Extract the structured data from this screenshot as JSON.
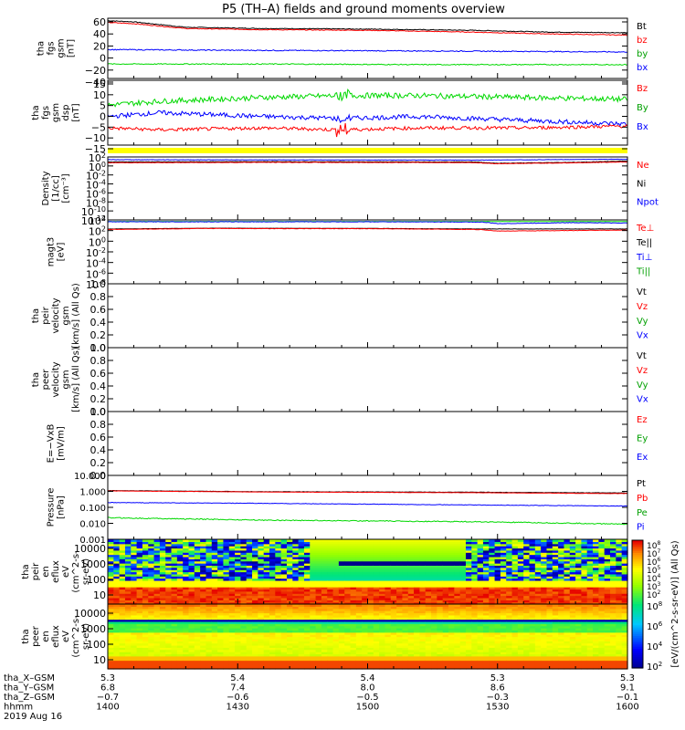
{
  "colors": {
    "black": "#000000",
    "red": "#ff0000",
    "blue": "#0000ff",
    "green": "#00d800",
    "yellow": "#ffff00",
    "gray": "#606060"
  },
  "title": "P5 (TH–A) fields and ground moments overview",
  "chart_data": [
    {
      "type": "line",
      "id": "p1",
      "ylabel": [
        "tha",
        "fgs",
        "gsm",
        "[nT]"
      ],
      "yticks": [
        "60",
        "40",
        "20",
        "0",
        "−20",
        "−40"
      ],
      "ylim": [
        -40,
        60
      ],
      "legend": [
        {
          "name": "Bt",
          "color": "#000000"
        },
        {
          "name": "bz",
          "color": "#ff0000"
        },
        {
          "name": "by",
          "color": "#00a000"
        },
        {
          "name": "bx",
          "color": "#0000ff"
        }
      ],
      "series": [
        {
          "name": "Bt",
          "color": "#000000",
          "x": [
            0,
            0.05,
            0.15,
            0.3,
            0.5,
            0.7,
            0.85,
            1
          ],
          "y": [
            56,
            54,
            45,
            43,
            42,
            40,
            37,
            36
          ],
          "noise": 0.6
        },
        {
          "name": "bz",
          "color": "#ff0000",
          "x": [
            0,
            0.05,
            0.15,
            0.3,
            0.5,
            0.7,
            0.85,
            1
          ],
          "y": [
            53,
            51,
            43,
            41,
            40,
            37,
            34,
            32
          ],
          "noise": 0.6
        },
        {
          "name": "by",
          "color": "#0000ff",
          "x": [
            0,
            0.2,
            0.5,
            0.8,
            1
          ],
          "y": [
            8,
            7,
            6,
            5,
            4
          ],
          "noise": 0.8
        },
        {
          "name": "bx",
          "color": "#00d800",
          "x": [
            0,
            0.3,
            0.6,
            1
          ],
          "y": [
            -16,
            -16,
            -17,
            -17
          ],
          "noise": 0.8
        }
      ]
    },
    {
      "type": "line",
      "id": "p2",
      "ylabel": [
        "tha",
        "fgs",
        "gsm",
        "dsp",
        "[nT]"
      ],
      "yticks": [
        "15",
        "10",
        "5",
        "0",
        "−5",
        "−10",
        "−15"
      ],
      "ylim": [
        -18,
        16
      ],
      "legend": [
        {
          "name": "Bz",
          "color": "#ff0000"
        },
        {
          "name": "By",
          "color": "#00a000"
        },
        {
          "name": "Bx",
          "color": "#0000ff"
        }
      ],
      "series": [
        {
          "name": "Bz",
          "color": "#00d800",
          "x": [
            0,
            0.1,
            0.3,
            0.45,
            0.6,
            0.8,
            1
          ],
          "y": [
            3,
            5,
            7,
            8,
            8,
            7,
            6
          ],
          "noise": 1.4
        },
        {
          "name": "By",
          "color": "#0000ff",
          "x": [
            0,
            0.1,
            0.3,
            0.45,
            0.6,
            0.8,
            1
          ],
          "y": [
            -3,
            -1,
            -3,
            -4,
            -3,
            -5,
            -7
          ],
          "noise": 1.2
        },
        {
          "name": "Bx",
          "color": "#ff0000",
          "x": [
            0,
            0.1,
            0.3,
            0.45,
            0.6,
            0.8,
            1
          ],
          "y": [
            -9,
            -10,
            -9,
            -10,
            -9,
            -9,
            -8
          ],
          "noise": 0.9
        }
      ]
    },
    {
      "type": "line",
      "id": "p3",
      "log": true,
      "ylabel": [
        "Density",
        "[1/cc]",
        "[cm⁻³]"
      ],
      "ylim": [
        -12,
        2
      ],
      "yticks": [
        {
          "b": "10",
          "e": "2",
          "v": 2
        },
        {
          "b": "10",
          "e": "0",
          "v": 0
        },
        {
          "b": "10",
          "e": "-2",
          "v": -2
        },
        {
          "b": "10",
          "e": "-4",
          "v": -4
        },
        {
          "b": "10",
          "e": "-6",
          "v": -6
        },
        {
          "b": "10",
          "e": "-8",
          "v": -8
        },
        {
          "b": "10",
          "e": "-10",
          "v": -10
        },
        {
          "b": "10",
          "e": "-12",
          "v": -12
        }
      ],
      "legend": [
        {
          "name": "Ne",
          "color": "#ff0000"
        },
        {
          "name": "Ni",
          "color": "#000000"
        },
        {
          "name": "Npot",
          "color": "#0000ff"
        }
      ],
      "series": [
        {
          "name": "Npot",
          "color": "#0000ff",
          "x": [
            0,
            0.3,
            0.7,
            1
          ],
          "y": [
            1.4,
            1.35,
            1.3,
            1.5
          ],
          "noise": 0.03
        },
        {
          "name": "Ni",
          "color": "#000000",
          "x": [
            0,
            0.3,
            0.7,
            0.75,
            0.9,
            1
          ],
          "y": [
            0.9,
            0.95,
            0.9,
            0.6,
            0.8,
            1.1
          ],
          "noise": 0.05
        },
        {
          "name": "Ne",
          "color": "#ff0000",
          "x": [
            0,
            0.3,
            0.7,
            0.75,
            0.9,
            1
          ],
          "y": [
            0.7,
            0.8,
            0.75,
            0.5,
            0.7,
            0.9
          ],
          "noise": 0.05
        }
      ]
    },
    {
      "type": "line",
      "id": "p4",
      "log": true,
      "ylabel": [
        "magt3",
        "[eV]"
      ],
      "ylim": [
        -8,
        4
      ],
      "yticks": [
        {
          "b": "10",
          "e": "4",
          "v": 4
        },
        {
          "b": "10",
          "e": "2",
          "v": 2
        },
        {
          "b": "10",
          "e": "0",
          "v": 0
        },
        {
          "b": "10",
          "e": "-2",
          "v": -2
        },
        {
          "b": "10",
          "e": "-4",
          "v": -4
        },
        {
          "b": "10",
          "e": "-6",
          "v": -6
        },
        {
          "b": "10",
          "e": "-8",
          "v": -8
        }
      ],
      "legend": [
        {
          "name": "Te⊥",
          "color": "#ff0000"
        },
        {
          "name": "Te||",
          "color": "#000000"
        },
        {
          "name": "Ti⊥",
          "color": "#0000ff"
        },
        {
          "name": "Ti||",
          "color": "#00a000"
        }
      ],
      "series": [
        {
          "name": "Ti||",
          "color": "#00d800",
          "x": [
            0,
            0.5,
            1
          ],
          "y": [
            3.7,
            3.7,
            3.7
          ],
          "noise": 0.02
        },
        {
          "name": "Ti⊥",
          "color": "#0000ff",
          "x": [
            0,
            0.5,
            0.72,
            0.75,
            0.9,
            1
          ],
          "y": [
            3.65,
            3.65,
            3.6,
            3.3,
            3.5,
            3.4
          ],
          "noise": 0.05
        },
        {
          "name": "Te||",
          "color": "#000000",
          "x": [
            0,
            0.2,
            0.5,
            0.72,
            1
          ],
          "y": [
            2.3,
            2.45,
            2.4,
            2.3,
            2.3
          ],
          "noise": 0.02
        },
        {
          "name": "Te⊥",
          "color": "#ff0000",
          "x": [
            0,
            0.2,
            0.5,
            0.72,
            0.75,
            1
          ],
          "y": [
            2.2,
            2.4,
            2.35,
            2.2,
            1.9,
            2.1
          ],
          "noise": 0.04
        }
      ]
    },
    {
      "type": "line",
      "id": "p5",
      "ylim": [
        0,
        1
      ],
      "ylabel": [
        "tha",
        "peir",
        "velocity",
        "gsm",
        "[km/s] (All Qs)"
      ],
      "yticks": [
        "1.0",
        "0.8",
        "0.6",
        "0.4",
        "0.2",
        "0.0"
      ],
      "legend": [
        {
          "name": "Vt",
          "color": "#000000"
        },
        {
          "name": "Vz",
          "color": "#ff0000"
        },
        {
          "name": "Vy",
          "color": "#00a000"
        },
        {
          "name": "Vx",
          "color": "#0000ff"
        }
      ],
      "series": []
    },
    {
      "type": "line",
      "id": "p6",
      "ylim": [
        0,
        1
      ],
      "ylabel": [
        "tha",
        "peer",
        "velocity",
        "gsm",
        "[km/s] (All Qs)"
      ],
      "yticks": [
        "1.0",
        "0.8",
        "0.6",
        "0.4",
        "0.2",
        "0.0"
      ],
      "legend": [
        {
          "name": "Vt",
          "color": "#000000"
        },
        {
          "name": "Vz",
          "color": "#ff0000"
        },
        {
          "name": "Vy",
          "color": "#00a000"
        },
        {
          "name": "Vx",
          "color": "#0000ff"
        }
      ],
      "series": []
    },
    {
      "type": "line",
      "id": "p7",
      "ylim": [
        0,
        1
      ],
      "ylabel": [
        "E=−VxB",
        "[mV/m]"
      ],
      "yticks": [
        "1.0",
        "0.8",
        "0.6",
        "0.4",
        "0.2",
        "0.0"
      ],
      "legend": [
        {
          "name": "Ez",
          "color": "#ff0000"
        },
        {
          "name": "Ey",
          "color": "#00a000"
        },
        {
          "name": "Ex",
          "color": "#0000ff"
        }
      ],
      "series": []
    },
    {
      "type": "line",
      "id": "p8",
      "log": true,
      "ylabel": [
        "Pressure",
        "[nPa]"
      ],
      "ylim": [
        -3,
        1
      ],
      "yticks": [
        {
          "t": "10.000",
          "v": 1
        },
        {
          "t": "1.000",
          "v": 0
        },
        {
          "t": "0.100",
          "v": -1
        },
        {
          "t": "0.010",
          "v": -2
        },
        {
          "t": "0.001",
          "v": -3
        }
      ],
      "legend": [
        {
          "name": "Pt",
          "color": "#000000"
        },
        {
          "name": "Pb",
          "color": "#ff0000"
        },
        {
          "name": "Pe",
          "color": "#00a000"
        },
        {
          "name": "Pi",
          "color": "#0000ff"
        }
      ],
      "series": [
        {
          "name": "Pt",
          "color": "#000000",
          "x": [
            0,
            0.3,
            0.7,
            1
          ],
          "y": [
            0.05,
            -0.02,
            -0.05,
            -0.1
          ],
          "noise": 0.01
        },
        {
          "name": "Pb",
          "color": "#ff0000",
          "x": [
            0,
            0.3,
            0.7,
            1
          ],
          "y": [
            0.03,
            -0.04,
            -0.08,
            -0.14
          ],
          "noise": 0.01
        },
        {
          "name": "Pi",
          "color": "#0000ff",
          "x": [
            0,
            0.3,
            0.7,
            1
          ],
          "y": [
            -0.7,
            -0.75,
            -0.85,
            -0.92
          ],
          "noise": 0.015
        },
        {
          "name": "Pe",
          "color": "#00d800",
          "x": [
            0,
            0.3,
            0.7,
            1
          ],
          "y": [
            -1.65,
            -1.8,
            -1.9,
            -2.05
          ],
          "noise": 0.03
        }
      ]
    },
    {
      "type": "heatmap",
      "id": "p9",
      "ylabel": [
        "tha",
        "peir",
        "en",
        "eflux",
        "eV",
        "(cm^2-s-",
        "sr-eV)"
      ],
      "yticks": [
        "10000",
        "1000",
        "100",
        "10"
      ]
    },
    {
      "type": "heatmap",
      "id": "p10",
      "ylabel": [
        "tha",
        "peer",
        "en",
        "eflux",
        "eV",
        "(cm^2-s-",
        "sr-eV)"
      ],
      "yticks": [
        "10000",
        "1000",
        "100",
        "10"
      ]
    }
  ],
  "colorbar": {
    "label": "[eV/(cm^2-s-sr-eV)] (All Qs)",
    "ticks1": [
      {
        "b": "10",
        "e": "8"
      },
      {
        "b": "10",
        "e": "7"
      },
      {
        "b": "10",
        "e": "6"
      },
      {
        "b": "10",
        "e": "5"
      },
      {
        "b": "10",
        "e": "4"
      },
      {
        "b": "10",
        "e": "3"
      },
      {
        "b": "10",
        "e": "2"
      }
    ],
    "ticks2": [
      {
        "b": "10",
        "e": "8"
      },
      {
        "b": "10",
        "e": "6"
      },
      {
        "b": "10",
        "e": "4"
      },
      {
        "b": "10",
        "e": "2"
      }
    ]
  },
  "xaxis": {
    "rows": [
      {
        "label": "tha_X–GSM",
        "values": [
          "5.3",
          "5.4",
          "5.4",
          "5.3",
          "5.3"
        ]
      },
      {
        "label": "tha_Y–GSM",
        "values": [
          "6.8",
          "7.4",
          "8.0",
          "8.6",
          "9.1"
        ]
      },
      {
        "label": "tha_Z–GSM",
        "values": [
          "−0.7",
          "−0.6",
          "−0.5",
          "−0.3",
          "−0.1"
        ]
      },
      {
        "label": "hhmm",
        "values": [
          "1400",
          "1430",
          "1500",
          "1530",
          "1600"
        ]
      }
    ],
    "date": "2019 Aug 16"
  }
}
